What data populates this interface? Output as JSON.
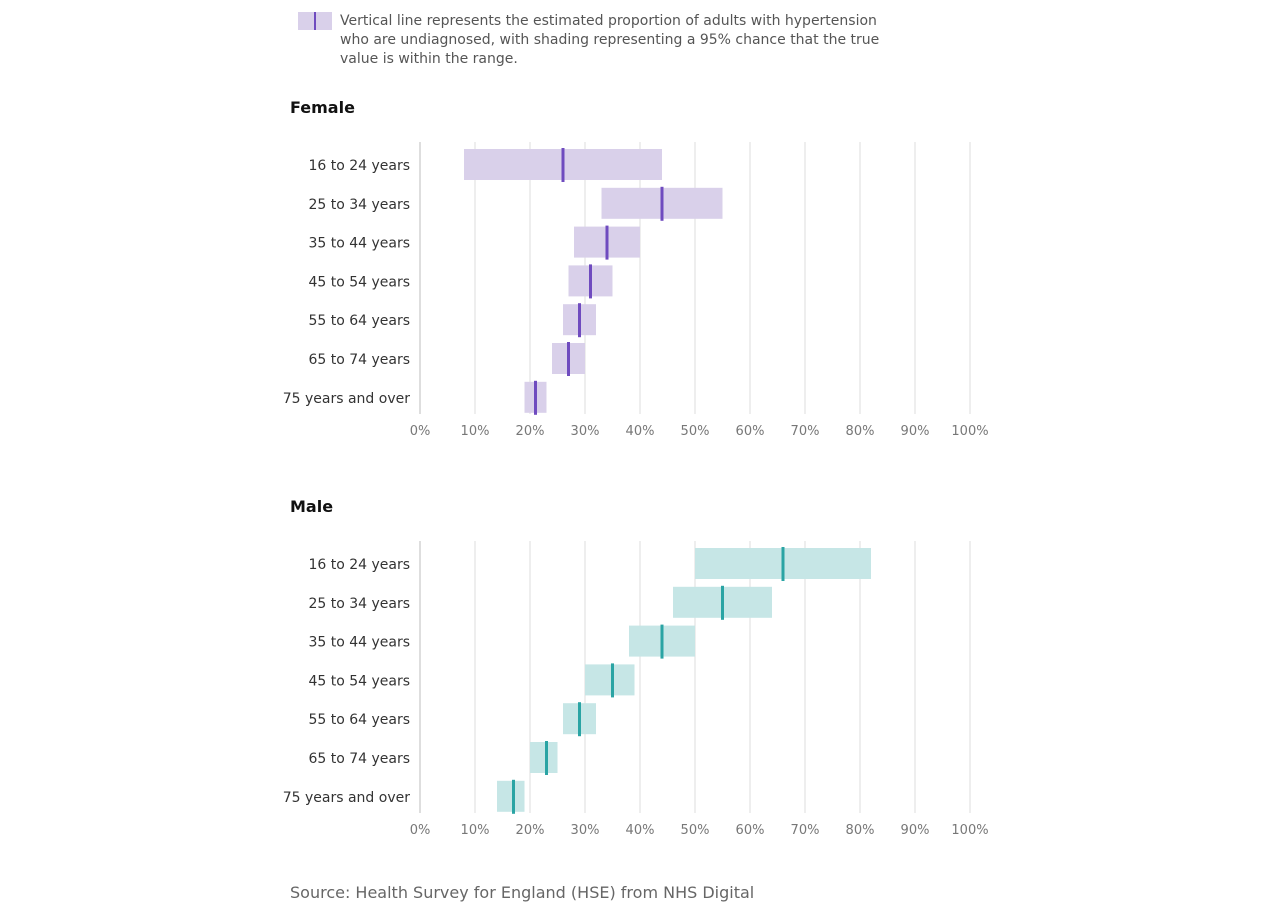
{
  "legend": {
    "text": "Vertical line represents the estimated proportion of adults with hypertension who are undiagnosed, with shading representing a 95% chance that the true value is within the range.",
    "swatch_fill": "#d9d0ea",
    "swatch_line": "#6f4bbf"
  },
  "source": "Source: Health Survey for England (HSE) from NHS Digital",
  "chart_data": [
    {
      "type": "range-dot",
      "title": "Female",
      "xlim": [
        0,
        100
      ],
      "x_ticks": [
        "0%",
        "10%",
        "20%",
        "30%",
        "40%",
        "50%",
        "60%",
        "70%",
        "80%",
        "90%",
        "100%"
      ],
      "categories": [
        "16 to 24 years",
        "25 to 34 years",
        "35 to 44 years",
        "45 to 54 years",
        "55 to 64 years",
        "65 to 74 years",
        "75 years and over"
      ],
      "estimate": [
        26,
        44,
        34,
        31,
        29,
        27,
        21
      ],
      "lower": [
        8,
        33,
        28,
        27,
        26,
        24,
        19
      ],
      "upper": [
        44,
        55,
        40,
        35,
        32,
        30,
        23
      ],
      "range_color": "#d9d0ea",
      "line_color": "#6f4bbf",
      "grid": true
    },
    {
      "type": "range-dot",
      "title": "Male",
      "xlim": [
        0,
        100
      ],
      "x_ticks": [
        "0%",
        "10%",
        "20%",
        "30%",
        "40%",
        "50%",
        "60%",
        "70%",
        "80%",
        "90%",
        "100%"
      ],
      "categories": [
        "16 to 24 years",
        "25 to 34 years",
        "35 to 44 years",
        "45 to 54 years",
        "55 to 64 years",
        "65 to 74 years",
        "75 years and over"
      ],
      "estimate": [
        66,
        55,
        44,
        35,
        29,
        23,
        17
      ],
      "lower": [
        50,
        46,
        38,
        30,
        26,
        20,
        14
      ],
      "upper": [
        82,
        64,
        50,
        39,
        32,
        25,
        19
      ],
      "range_color": "#c6e6e6",
      "line_color": "#2aa4a4",
      "grid": true
    }
  ]
}
